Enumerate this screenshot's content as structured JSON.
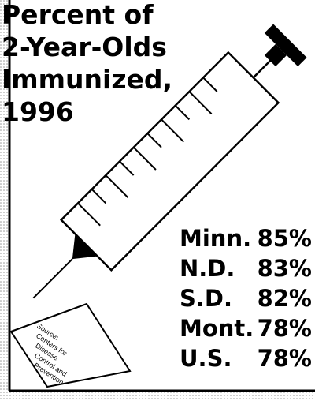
{
  "title_lines": [
    "Percent of",
    "2-Year-Olds",
    "Immunized,",
    "1996"
  ],
  "rows": [
    [
      "Minn.",
      "85%"
    ],
    [
      "N.D.",
      "83%"
    ],
    [
      "S.D.",
      "82%"
    ],
    [
      "Mont.",
      "78%"
    ],
    [
      "U.S.",
      "78%"
    ]
  ],
  "source_lines": [
    "Source:",
    "Centers for",
    "Disease",
    "Control and",
    "Prevention"
  ]
}
